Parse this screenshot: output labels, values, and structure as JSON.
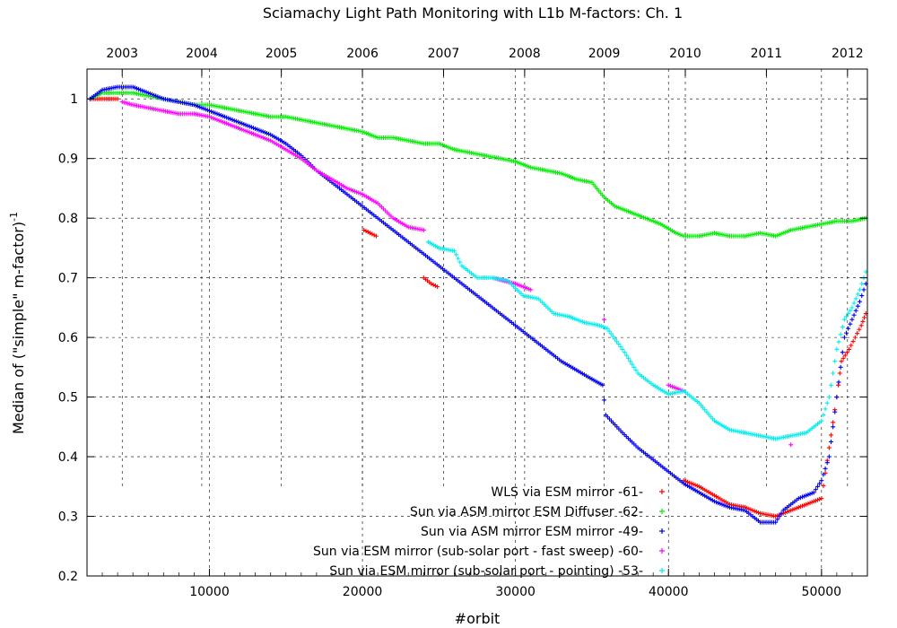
{
  "chart_data": {
    "type": "scatter",
    "title": "Sciamachy Light Path Monitoring with L1b M-factors: Ch. 1",
    "xlabel": "#orbit",
    "ylabel": "Median of (\"simple\" m-factor)",
    "ylabel_superscript": "-1",
    "xlim": [
      2000,
      53000
    ],
    "ylim": [
      0.2,
      1.05
    ],
    "grid": true,
    "legend_position": "bottom-center",
    "x_ticks": [
      10000,
      20000,
      30000,
      40000,
      50000
    ],
    "x_tick_labels": [
      "10000",
      "20000",
      "30000",
      "40000",
      "50000"
    ],
    "y_ticks": [
      0.2,
      0.3,
      0.4,
      0.5,
      0.6,
      0.7,
      0.8,
      0.9,
      1.0
    ],
    "y_tick_labels": [
      "0.2",
      "0.3",
      "0.4",
      "0.5",
      "0.6",
      "0.7",
      "0.8",
      "0.9",
      "1"
    ],
    "top_axis": {
      "labels": [
        "2003",
        "2004",
        "2005",
        "2006",
        "2007",
        "2008",
        "2009",
        "2010",
        "2011",
        "2012"
      ],
      "orbits": [
        4300,
        9500,
        14700,
        20000,
        25300,
        30600,
        35800,
        41100,
        46400,
        51700
      ]
    },
    "series": [
      {
        "name": "WLS via ESM mirror -61-",
        "color": "#ff0000",
        "points": [
          [
            2200,
            1.0
          ],
          [
            3000,
            1.0
          ],
          [
            4000,
            1.0
          ],
          [
            20100,
            0.78
          ],
          [
            20500,
            0.775
          ],
          [
            20900,
            0.77
          ],
          [
            24000,
            0.7
          ],
          [
            24500,
            0.69
          ],
          [
            24900,
            0.685
          ],
          [
            41000,
            0.36
          ],
          [
            42000,
            0.35
          ],
          [
            43000,
            0.335
          ],
          [
            44000,
            0.32
          ],
          [
            45000,
            0.315
          ],
          [
            46000,
            0.305
          ],
          [
            47000,
            0.3
          ],
          [
            48000,
            0.31
          ],
          [
            49000,
            0.32
          ],
          [
            50000,
            0.33
          ],
          [
            51000,
            0.5
          ],
          [
            51300,
            0.56
          ],
          [
            51800,
            0.58
          ],
          [
            52200,
            0.6
          ],
          [
            52600,
            0.62
          ],
          [
            52900,
            0.64
          ]
        ]
      },
      {
        "name": "Sun via ASM mirror  ESM Diffuser -62-",
        "color": "#00ee00",
        "points": [
          [
            2200,
            1.0
          ],
          [
            3000,
            1.01
          ],
          [
            4000,
            1.01
          ],
          [
            5000,
            1.01
          ],
          [
            6000,
            1.005
          ],
          [
            7000,
            1.0
          ],
          [
            8000,
            0.995
          ],
          [
            9000,
            0.99
          ],
          [
            10000,
            0.99
          ],
          [
            11000,
            0.985
          ],
          [
            12000,
            0.98
          ],
          [
            13000,
            0.975
          ],
          [
            14000,
            0.97
          ],
          [
            15000,
            0.97
          ],
          [
            16000,
            0.965
          ],
          [
            17000,
            0.96
          ],
          [
            18000,
            0.955
          ],
          [
            19000,
            0.95
          ],
          [
            20000,
            0.945
          ],
          [
            21000,
            0.935
          ],
          [
            22000,
            0.935
          ],
          [
            23000,
            0.93
          ],
          [
            24000,
            0.925
          ],
          [
            25000,
            0.925
          ],
          [
            26000,
            0.915
          ],
          [
            27000,
            0.91
          ],
          [
            28000,
            0.905
          ],
          [
            29000,
            0.9
          ],
          [
            30000,
            0.895
          ],
          [
            31000,
            0.885
          ],
          [
            32000,
            0.88
          ],
          [
            33000,
            0.875
          ],
          [
            34000,
            0.865
          ],
          [
            35000,
            0.86
          ],
          [
            35800,
            0.835
          ],
          [
            36500,
            0.82
          ],
          [
            37500,
            0.81
          ],
          [
            38500,
            0.8
          ],
          [
            39500,
            0.79
          ],
          [
            40500,
            0.775
          ],
          [
            41000,
            0.77
          ],
          [
            42000,
            0.77
          ],
          [
            43000,
            0.775
          ],
          [
            44000,
            0.77
          ],
          [
            45000,
            0.77
          ],
          [
            46000,
            0.775
          ],
          [
            47000,
            0.77
          ],
          [
            48000,
            0.78
          ],
          [
            49000,
            0.785
          ],
          [
            50000,
            0.79
          ],
          [
            51000,
            0.795
          ],
          [
            52000,
            0.795
          ],
          [
            52900,
            0.8
          ]
        ]
      },
      {
        "name": "Sun via ASM mirror  ESM mirror -49-",
        "color": "#0000ee",
        "points": [
          [
            2200,
            1.0
          ],
          [
            3000,
            1.015
          ],
          [
            4000,
            1.02
          ],
          [
            5000,
            1.02
          ],
          [
            6000,
            1.01
          ],
          [
            7000,
            1.0
          ],
          [
            8000,
            0.995
          ],
          [
            9000,
            0.99
          ],
          [
            10000,
            0.98
          ],
          [
            11000,
            0.97
          ],
          [
            12000,
            0.96
          ],
          [
            13000,
            0.95
          ],
          [
            14000,
            0.94
          ],
          [
            15000,
            0.925
          ],
          [
            16000,
            0.905
          ],
          [
            17000,
            0.88
          ],
          [
            18000,
            0.86
          ],
          [
            19000,
            0.84
          ],
          [
            20000,
            0.82
          ],
          [
            21000,
            0.8
          ],
          [
            22000,
            0.78
          ],
          [
            23000,
            0.76
          ],
          [
            24000,
            0.74
          ],
          [
            25000,
            0.72
          ],
          [
            26000,
            0.7
          ],
          [
            27000,
            0.68
          ],
          [
            28000,
            0.66
          ],
          [
            29000,
            0.64
          ],
          [
            30000,
            0.62
          ],
          [
            31000,
            0.6
          ],
          [
            32000,
            0.58
          ],
          [
            33000,
            0.56
          ],
          [
            34000,
            0.545
          ],
          [
            35000,
            0.53
          ],
          [
            35700,
            0.52
          ],
          [
            35900,
            0.47
          ],
          [
            37000,
            0.44
          ],
          [
            38000,
            0.415
          ],
          [
            39000,
            0.395
          ],
          [
            40000,
            0.375
          ],
          [
            41000,
            0.355
          ],
          [
            42000,
            0.34
          ],
          [
            43000,
            0.325
          ],
          [
            44000,
            0.315
          ],
          [
            45000,
            0.31
          ],
          [
            46000,
            0.29
          ],
          [
            47000,
            0.29
          ],
          [
            47500,
            0.31
          ],
          [
            48500,
            0.33
          ],
          [
            49500,
            0.34
          ],
          [
            50000,
            0.36
          ],
          [
            50500,
            0.4
          ],
          [
            51000,
            0.5
          ],
          [
            51500,
            0.6
          ],
          [
            52000,
            0.63
          ],
          [
            52500,
            0.66
          ],
          [
            52900,
            0.69
          ]
        ]
      },
      {
        "name": "Sun via ESM mirror (sub-solar port - fast sweep) -60-",
        "color": "#ff00ff",
        "points": [
          [
            4300,
            0.995
          ],
          [
            5000,
            0.99
          ],
          [
            6000,
            0.985
          ],
          [
            7000,
            0.98
          ],
          [
            8000,
            0.975
          ],
          [
            9000,
            0.975
          ],
          [
            10000,
            0.97
          ],
          [
            11000,
            0.96
          ],
          [
            12000,
            0.95
          ],
          [
            13000,
            0.94
          ],
          [
            14000,
            0.93
          ],
          [
            15000,
            0.915
          ],
          [
            16000,
            0.9
          ],
          [
            17000,
            0.88
          ],
          [
            18000,
            0.865
          ],
          [
            19000,
            0.85
          ],
          [
            20000,
            0.84
          ],
          [
            21000,
            0.825
          ],
          [
            22000,
            0.8
          ],
          [
            23000,
            0.785
          ],
          [
            24000,
            0.78
          ],
          [
            28500,
            0.7
          ],
          [
            30000,
            0.69
          ],
          [
            31000,
            0.68
          ],
          [
            35800,
            0.63
          ],
          [
            40000,
            0.52
          ],
          [
            41000,
            0.51
          ],
          [
            48000,
            0.42
          ]
        ]
      },
      {
        "name": "Sun via ESM mirror (sub-solar port - pointing) -53-",
        "color": "#00eeee",
        "points": [
          [
            24300,
            0.76
          ],
          [
            25000,
            0.75
          ],
          [
            26000,
            0.745
          ],
          [
            26500,
            0.72
          ],
          [
            27500,
            0.7
          ],
          [
            28500,
            0.7
          ],
          [
            29500,
            0.695
          ],
          [
            30500,
            0.67
          ],
          [
            31500,
            0.665
          ],
          [
            32500,
            0.64
          ],
          [
            33500,
            0.635
          ],
          [
            34500,
            0.625
          ],
          [
            35500,
            0.62
          ],
          [
            36000,
            0.615
          ],
          [
            37000,
            0.58
          ],
          [
            38000,
            0.54
          ],
          [
            39000,
            0.52
          ],
          [
            40000,
            0.505
          ],
          [
            41000,
            0.51
          ],
          [
            42000,
            0.49
          ],
          [
            43000,
            0.46
          ],
          [
            44000,
            0.445
          ],
          [
            45000,
            0.44
          ],
          [
            46000,
            0.435
          ],
          [
            47000,
            0.43
          ],
          [
            48000,
            0.435
          ],
          [
            49000,
            0.44
          ],
          [
            50000,
            0.46
          ],
          [
            50500,
            0.5
          ],
          [
            51000,
            0.58
          ],
          [
            51500,
            0.63
          ],
          [
            52000,
            0.65
          ],
          [
            52500,
            0.68
          ],
          [
            52900,
            0.71
          ]
        ]
      }
    ]
  }
}
